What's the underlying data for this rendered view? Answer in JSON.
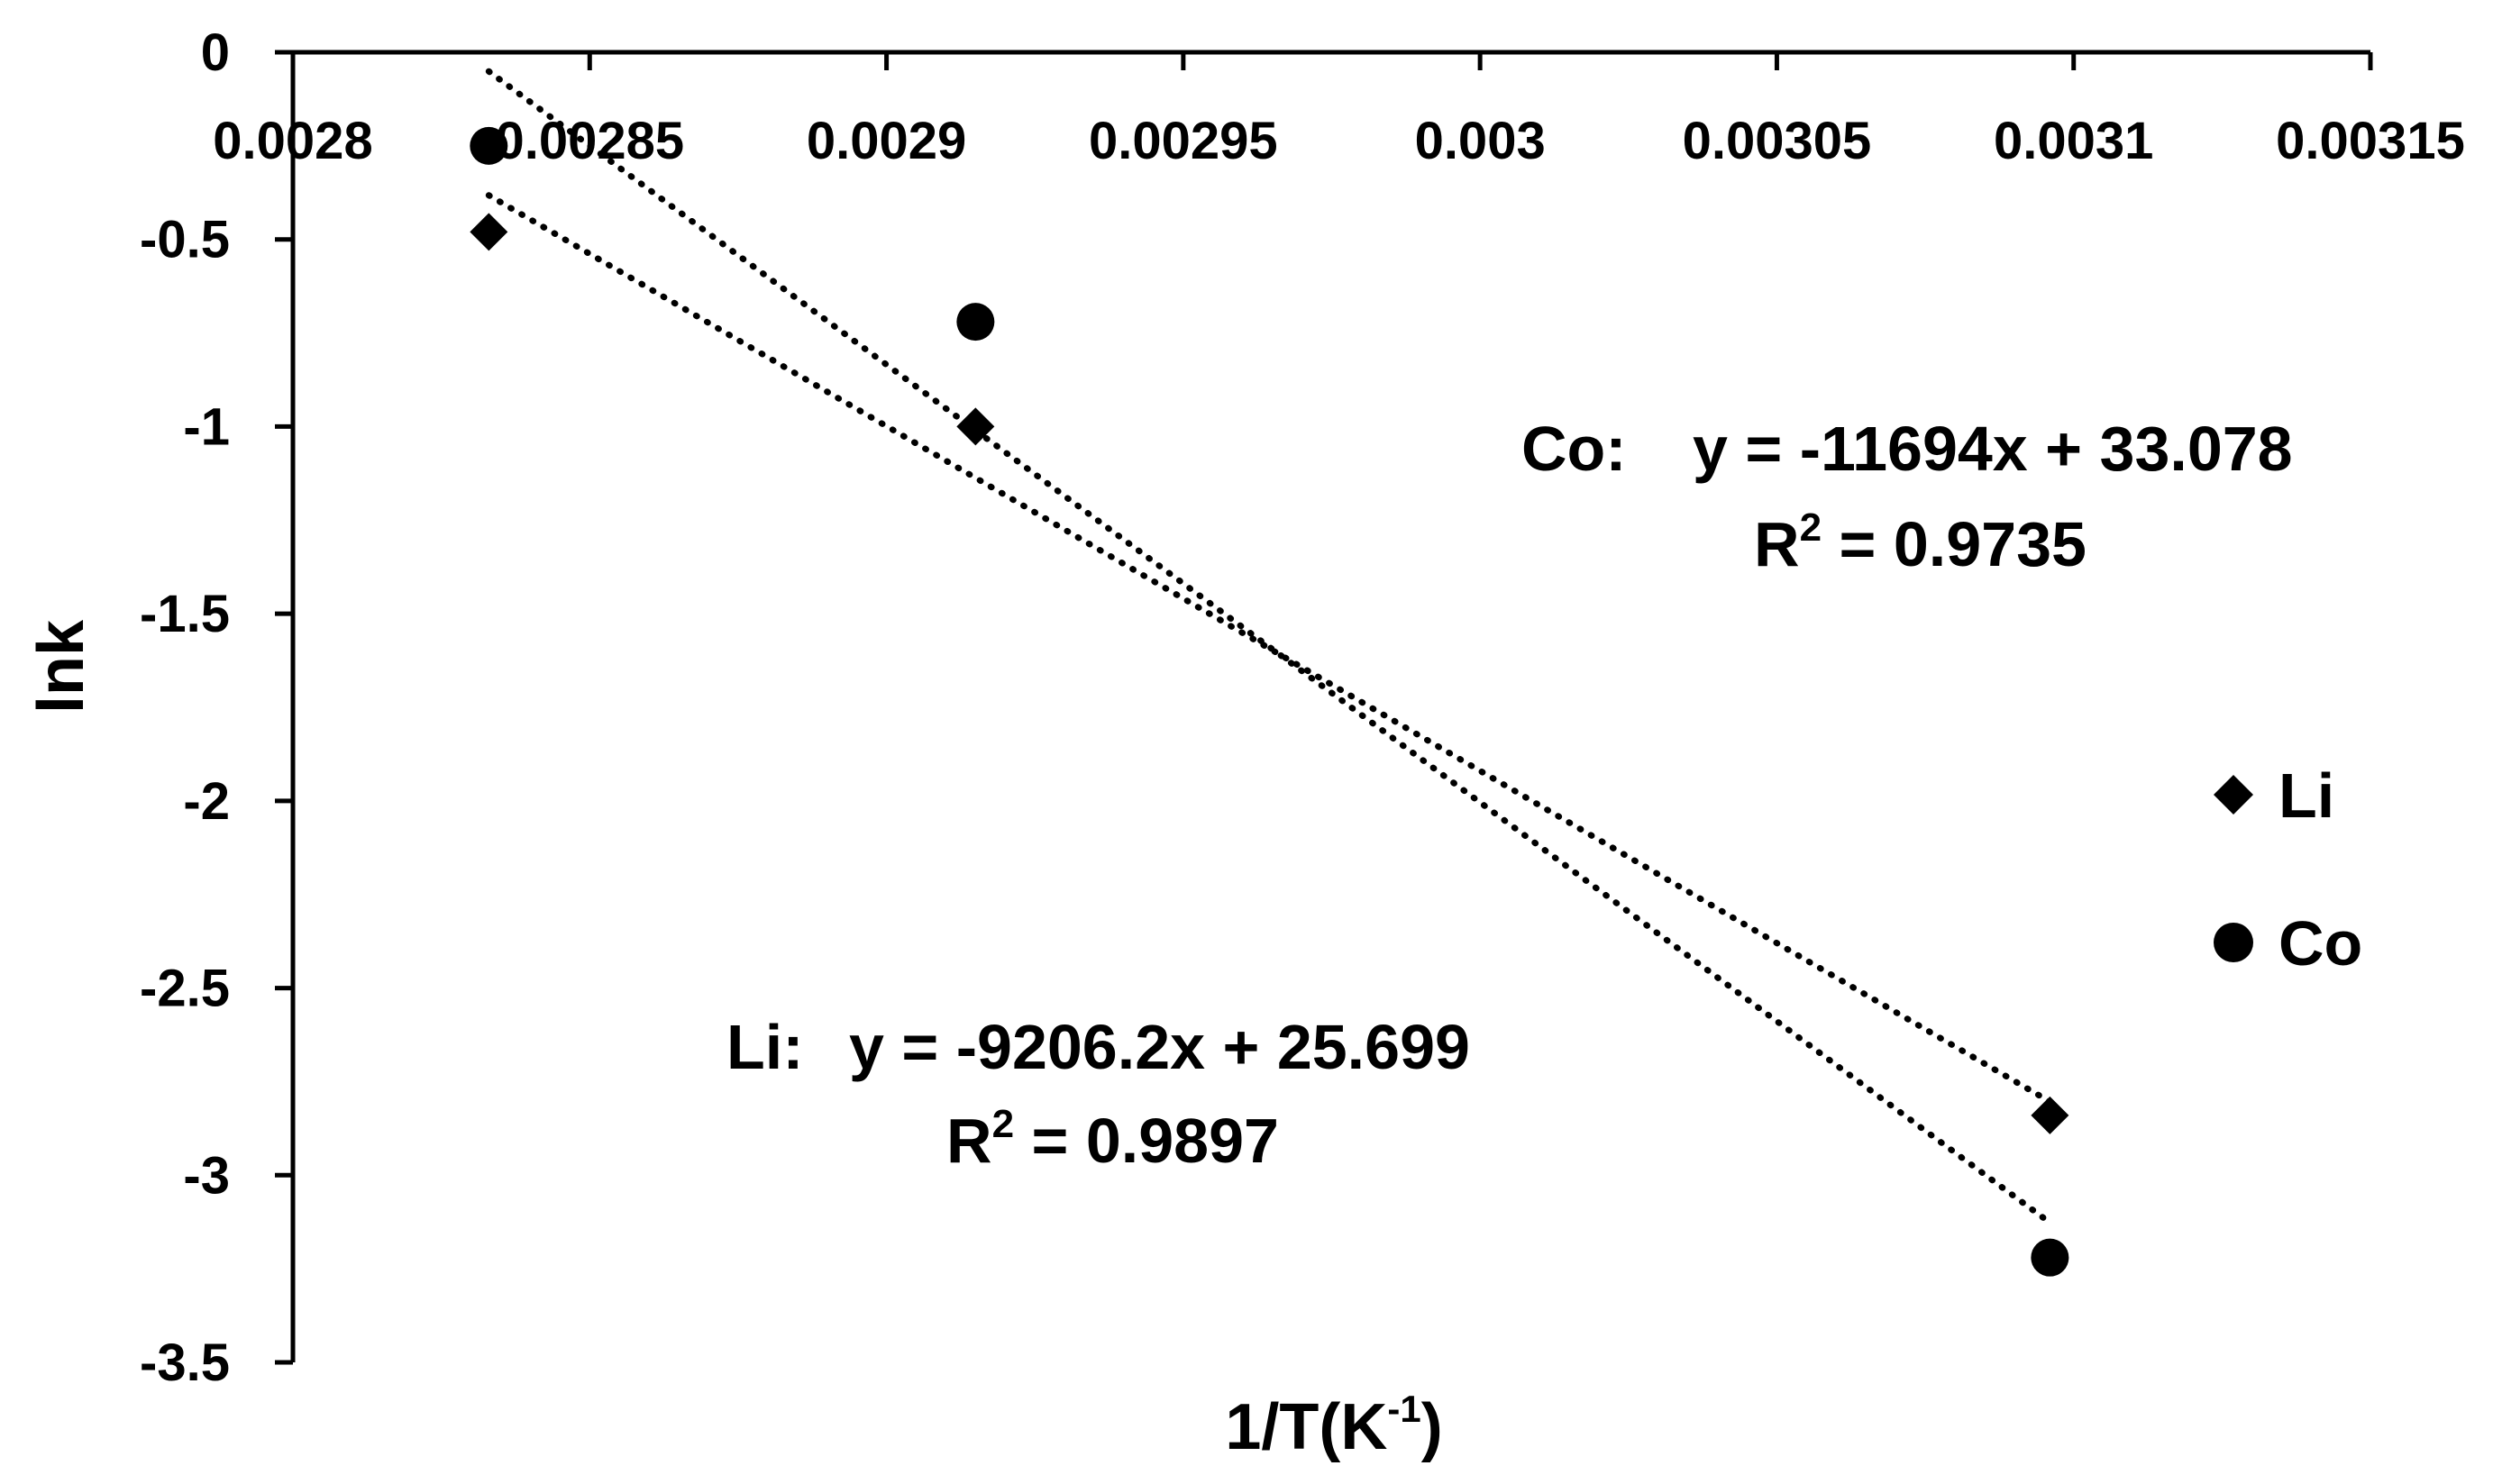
{
  "chart_data": {
    "type": "scatter",
    "xlabel_main": "1/T(K",
    "xlabel_sup": "-1",
    "xlabel_close": ")",
    "ylabel": "lnk",
    "xlim": [
      0.0028,
      0.00315
    ],
    "ylim": [
      -3.5,
      0
    ],
    "x_ticks": [
      0.0028,
      0.00285,
      0.0029,
      0.00295,
      0.003,
      0.00305,
      0.0031,
      0.00315
    ],
    "x_tick_labels": [
      "0.0028",
      "0.00285",
      "0.0029",
      "0.00295",
      "0.003",
      "0.00305",
      "0.0031",
      "0.00315"
    ],
    "y_ticks": [
      0,
      -0.5,
      -1,
      -1.5,
      -2,
      -2.5,
      -3,
      -3.5
    ],
    "y_tick_labels": [
      "0",
      "-0.5",
      "-1",
      "-1.5",
      "-2",
      "-2.5",
      "-3",
      "-3.5"
    ],
    "x_axis_position": "top",
    "grid": false,
    "legend_position": "right",
    "series": [
      {
        "name": "Li",
        "marker": "diamond",
        "x": [
          0.002833,
          0.002915,
          0.003096
        ],
        "y": [
          -0.48,
          -1.0,
          -2.84
        ],
        "trendline": {
          "slope": -9206.2,
          "intercept": 25.699,
          "x_range": [
            0.002833,
            0.003096
          ],
          "style": "dotted"
        },
        "equation_prefix": "Li:",
        "equation": "y = -9206.2x + 25.699",
        "r2_prefix": "R",
        "r2_sup": "2",
        "r2_value": " = 0.9897"
      },
      {
        "name": "Co",
        "marker": "circle",
        "x": [
          0.002833,
          0.002915,
          0.003096
        ],
        "y": [
          -0.25,
          -0.72,
          -3.22
        ],
        "trendline": {
          "slope": -11694,
          "intercept": 33.078,
          "x_range": [
            0.002833,
            0.003096
          ],
          "style": "dotted"
        },
        "equation_prefix": "Co:",
        "equation": "y = -11694x + 33.078",
        "r2_prefix": "R",
        "r2_sup": "2",
        "r2_value": " = 0.9735"
      }
    ],
    "colors": {
      "marker": "#000000",
      "axis": "#000000",
      "background": "#ffffff"
    }
  }
}
